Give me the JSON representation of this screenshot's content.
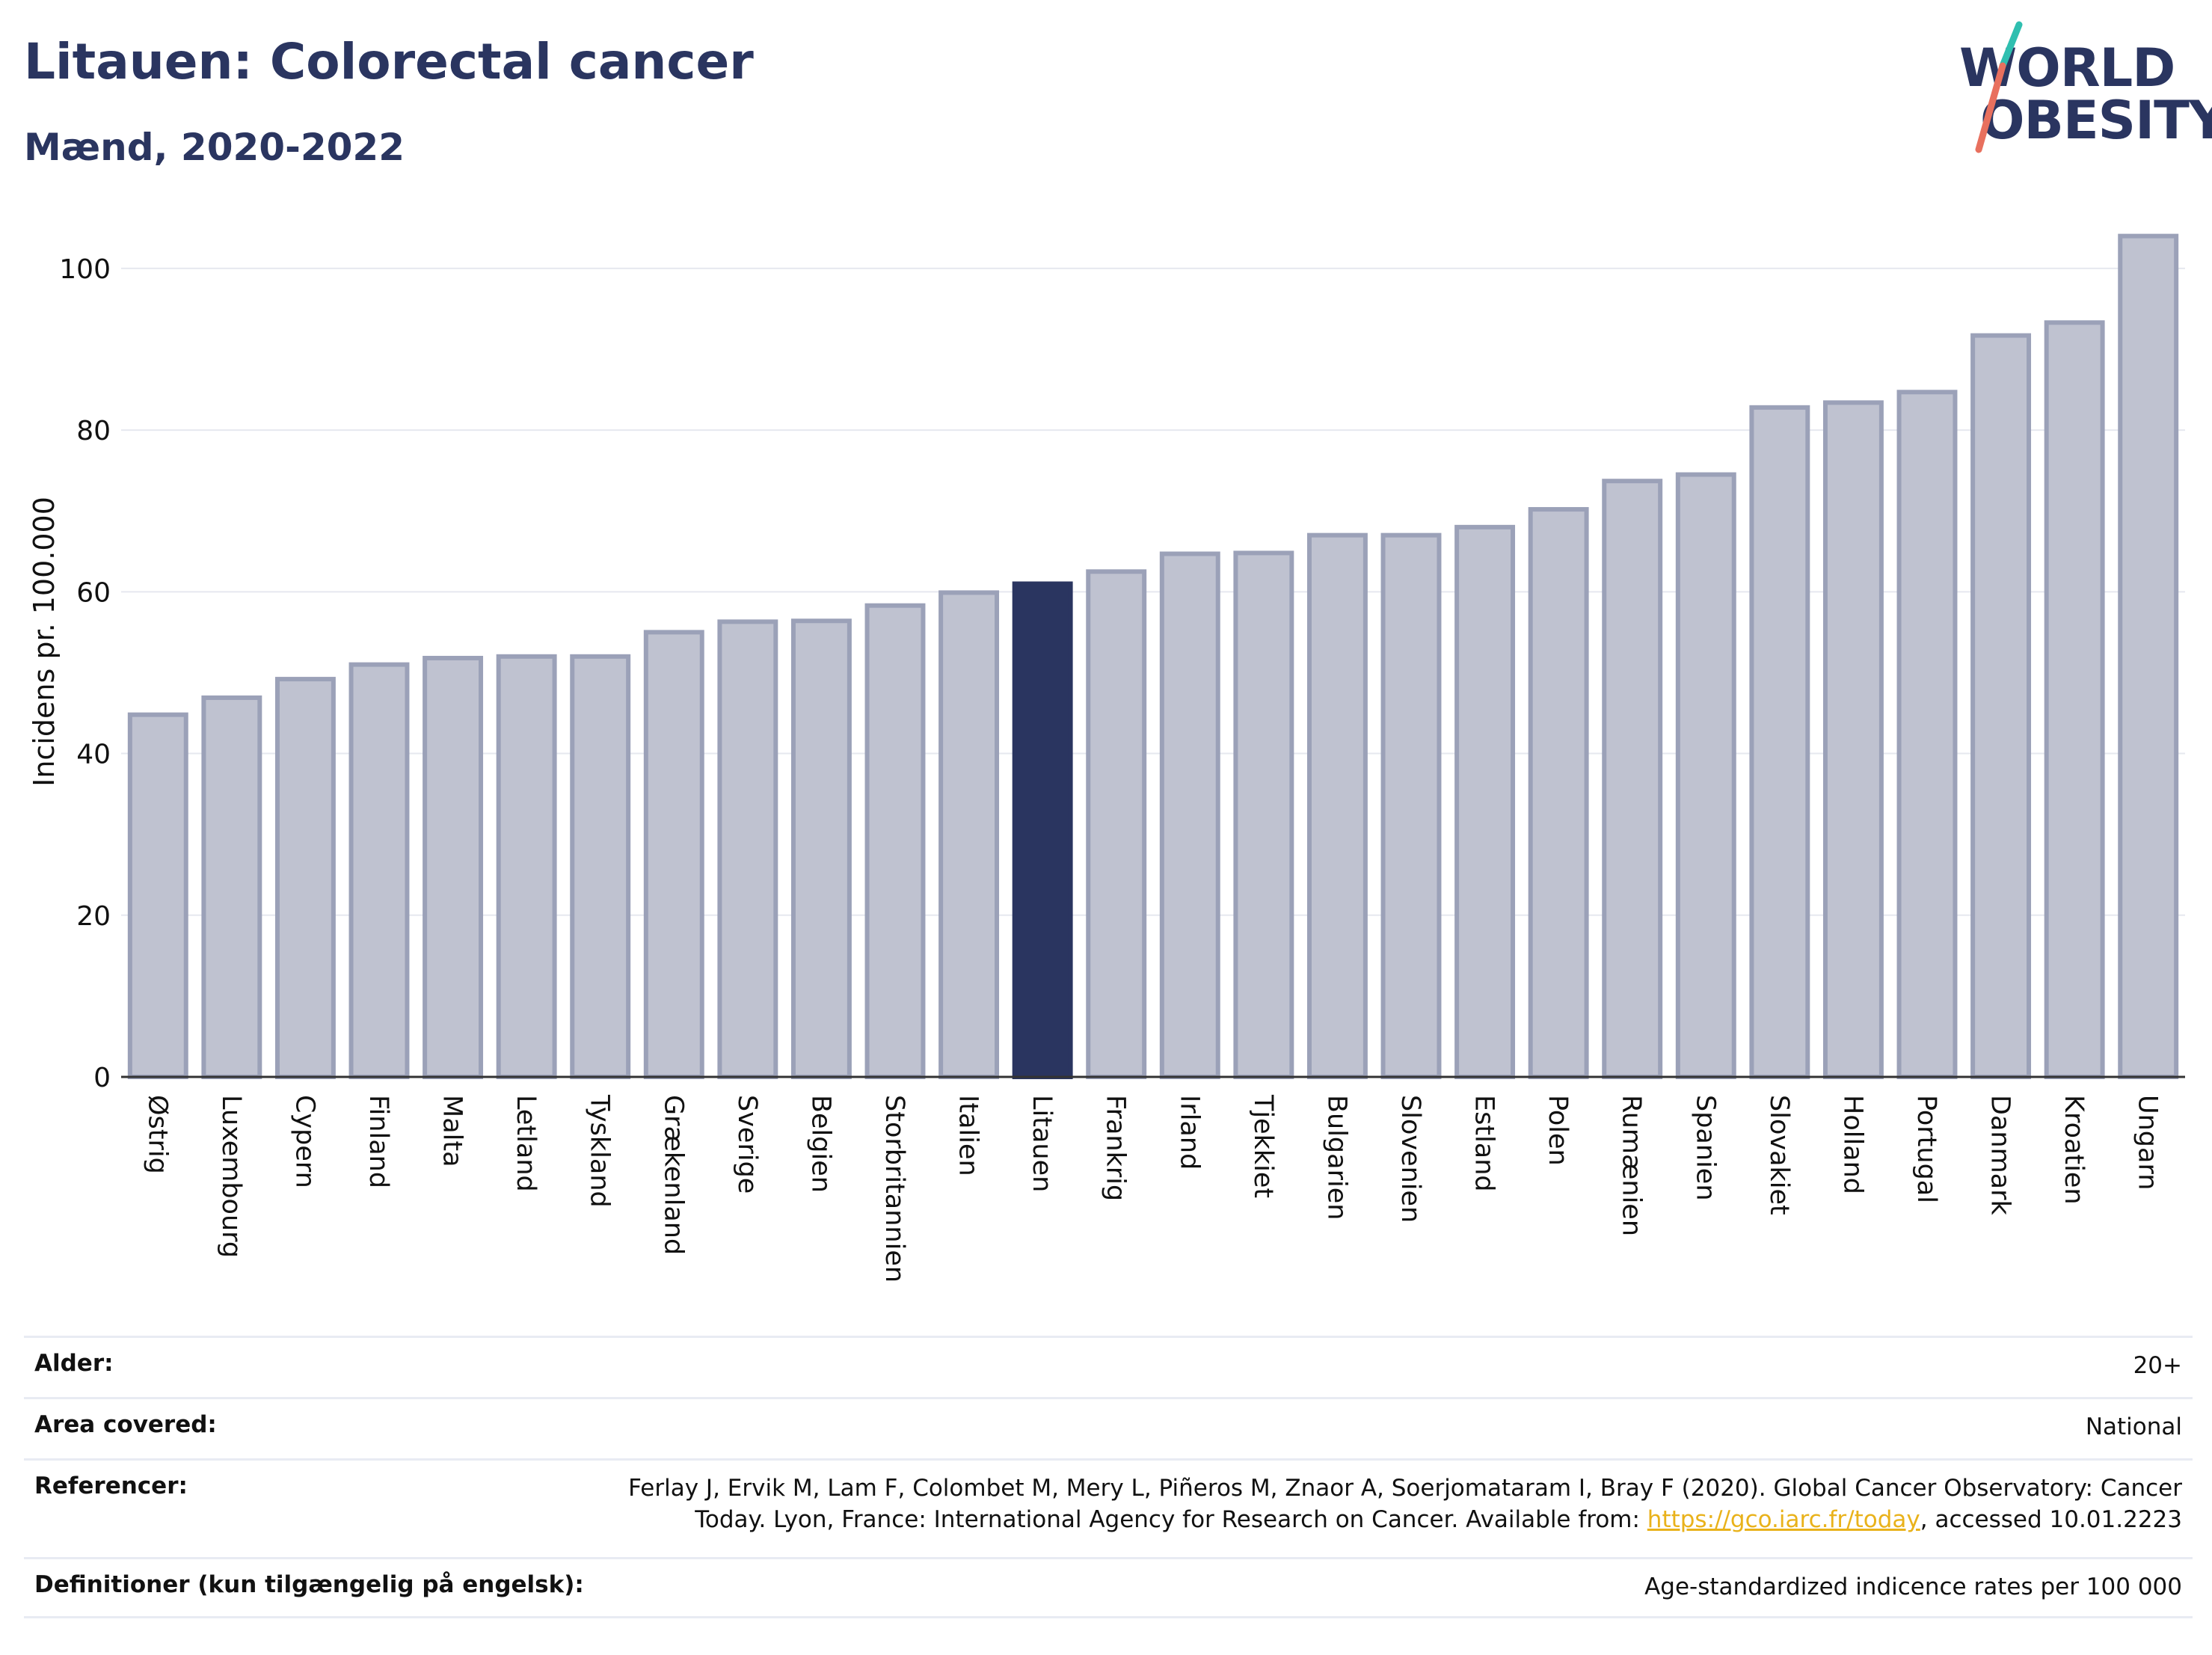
{
  "header": {
    "title": "Litauen: Colorectal cancer",
    "subtitle": "Mænd, 2020-2022",
    "logo_line1": "WORLD",
    "logo_line2": "OBESITY"
  },
  "colors": {
    "bar": "#bfc2d0",
    "bar_border": "#9ba1b8",
    "highlight": "#2a3560",
    "title": "#2a3560",
    "link": "#e9b21b"
  },
  "chart_data": {
    "type": "bar",
    "title": "",
    "xlabel": "",
    "ylabel": "Incidens pr. 100.000",
    "ylim": [
      0,
      106
    ],
    "yticks": [
      0,
      20,
      40,
      60,
      80,
      100
    ],
    "highlight": "Litauen",
    "categories": [
      "Østrig",
      "Luxembourg",
      "Cypern",
      "Finland",
      "Malta",
      "Letland",
      "Tyskland",
      "Grækenland",
      "Sverige",
      "Belgien",
      "Storbritannien",
      "Italien",
      "Litauen",
      "Frankrig",
      "Irland",
      "Tjekkiet",
      "Bulgarien",
      "Slovenien",
      "Estland",
      "Polen",
      "Rumænien",
      "Spanien",
      "Slovakiet",
      "Holland",
      "Portugal",
      "Danmark",
      "Kroatien",
      "Ungarn"
    ],
    "values": [
      44.8,
      46.9,
      49.2,
      51.0,
      51.8,
      52.0,
      52.0,
      55.0,
      56.3,
      56.4,
      58.3,
      59.9,
      61.0,
      62.5,
      64.7,
      64.8,
      67.0,
      67.0,
      68.0,
      70.2,
      73.7,
      74.5,
      82.8,
      83.4,
      84.7,
      91.7,
      93.3,
      104.0
    ],
    "grid": true,
    "legend": "none"
  },
  "info": {
    "age_label": "Alder:",
    "age_value": "20+",
    "area_label": "Area covered:",
    "area_value": "National",
    "ref_label": "Referencer:",
    "ref_text_1": "Ferlay J, Ervik M, Lam F, Colombet M, Mery L, Piñeros M, Znaor A, Soerjomataram I, Bray F (2020). Global Cancer Observatory: Cancer",
    "ref_text_2": "Today. Lyon, France: International Agency for Research on Cancer. Available from: ",
    "ref_link": "https://gco.iarc.fr/today",
    "ref_text_3": ", accessed 10.01.2223",
    "def_label": "Definitioner (kun tilgængelig på engelsk):",
    "def_value": "Age-standardized indicence rates per 100 000"
  }
}
